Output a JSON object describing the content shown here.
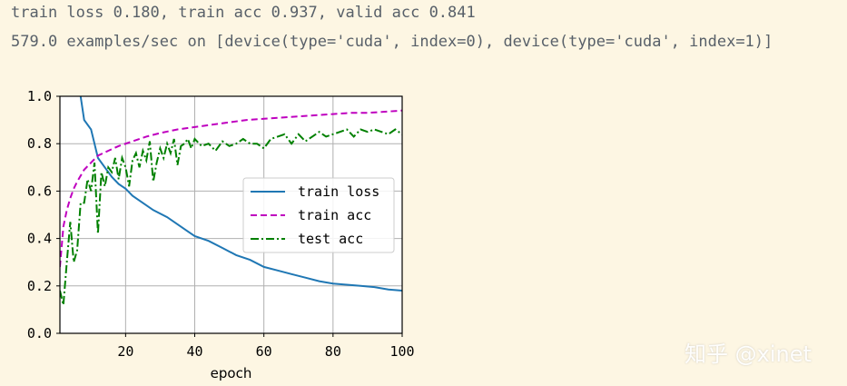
{
  "log": {
    "line1": "train loss 0.180, train acc 0.937, valid acc 0.841",
    "line2": "579.0 examples/sec on [device(type='cuda', index=0), device(type='cuda', index=1)]"
  },
  "watermark": "知乎 @xinet",
  "chart_data": {
    "type": "line",
    "xlabel": "epoch",
    "ylabel": "",
    "xlim": [
      1,
      100
    ],
    "ylim": [
      0.0,
      1.0
    ],
    "xticks": [
      20,
      40,
      60,
      80,
      100
    ],
    "yticks": [
      0.0,
      0.2,
      0.4,
      0.6,
      0.8,
      1.0
    ],
    "xtick_labels": [
      "20",
      "40",
      "60",
      "80",
      "100"
    ],
    "ytick_labels": [
      "0.0",
      "0.2",
      "0.4",
      "0.6",
      "0.8",
      "1.0"
    ],
    "grid": true,
    "legend_position": "center-right",
    "series": [
      {
        "name": "train loss",
        "color": "#1f77b4",
        "style": "solid",
        "points": [
          [
            7,
            1.0
          ],
          [
            8,
            0.9
          ],
          [
            10,
            0.86
          ],
          [
            11,
            0.8
          ],
          [
            12,
            0.74
          ],
          [
            14,
            0.7
          ],
          [
            16,
            0.66
          ],
          [
            18,
            0.63
          ],
          [
            20,
            0.61
          ],
          [
            22,
            0.58
          ],
          [
            25,
            0.55
          ],
          [
            28,
            0.52
          ],
          [
            32,
            0.49
          ],
          [
            36,
            0.45
          ],
          [
            40,
            0.41
          ],
          [
            44,
            0.39
          ],
          [
            48,
            0.36
          ],
          [
            52,
            0.33
          ],
          [
            56,
            0.31
          ],
          [
            60,
            0.28
          ],
          [
            64,
            0.265
          ],
          [
            68,
            0.25
          ],
          [
            72,
            0.235
          ],
          [
            76,
            0.22
          ],
          [
            80,
            0.21
          ],
          [
            84,
            0.205
          ],
          [
            88,
            0.2
          ],
          [
            92,
            0.195
          ],
          [
            96,
            0.185
          ],
          [
            100,
            0.18
          ]
        ]
      },
      {
        "name": "train acc",
        "color": "#bf00bf",
        "style": "dashed",
        "points": [
          [
            1,
            0.28
          ],
          [
            2,
            0.45
          ],
          [
            3,
            0.52
          ],
          [
            4,
            0.57
          ],
          [
            5,
            0.61
          ],
          [
            6,
            0.64
          ],
          [
            8,
            0.69
          ],
          [
            10,
            0.72
          ],
          [
            12,
            0.75
          ],
          [
            15,
            0.77
          ],
          [
            18,
            0.79
          ],
          [
            22,
            0.81
          ],
          [
            26,
            0.83
          ],
          [
            30,
            0.845
          ],
          [
            35,
            0.86
          ],
          [
            40,
            0.87
          ],
          [
            45,
            0.88
          ],
          [
            50,
            0.89
          ],
          [
            55,
            0.9
          ],
          [
            60,
            0.905
          ],
          [
            65,
            0.91
          ],
          [
            70,
            0.915
          ],
          [
            75,
            0.92
          ],
          [
            80,
            0.925
          ],
          [
            85,
            0.93
          ],
          [
            90,
            0.93
          ],
          [
            95,
            0.935
          ],
          [
            100,
            0.94
          ]
        ]
      },
      {
        "name": "test acc",
        "color": "#008000",
        "style": "dashdot",
        "points": [
          [
            1,
            0.18
          ],
          [
            2,
            0.12
          ],
          [
            3,
            0.3
          ],
          [
            4,
            0.47
          ],
          [
            5,
            0.3
          ],
          [
            6,
            0.35
          ],
          [
            7,
            0.55
          ],
          [
            8,
            0.55
          ],
          [
            9,
            0.65
          ],
          [
            10,
            0.6
          ],
          [
            11,
            0.72
          ],
          [
            12,
            0.42
          ],
          [
            13,
            0.68
          ],
          [
            14,
            0.62
          ],
          [
            15,
            0.7
          ],
          [
            16,
            0.68
          ],
          [
            17,
            0.74
          ],
          [
            18,
            0.65
          ],
          [
            19,
            0.74
          ],
          [
            20,
            0.7
          ],
          [
            21,
            0.62
          ],
          [
            22,
            0.73
          ],
          [
            23,
            0.76
          ],
          [
            24,
            0.7
          ],
          [
            25,
            0.77
          ],
          [
            26,
            0.73
          ],
          [
            27,
            0.81
          ],
          [
            28,
            0.64
          ],
          [
            29,
            0.72
          ],
          [
            30,
            0.78
          ],
          [
            31,
            0.74
          ],
          [
            32,
            0.8
          ],
          [
            33,
            0.76
          ],
          [
            34,
            0.82
          ],
          [
            35,
            0.71
          ],
          [
            36,
            0.79
          ],
          [
            37,
            0.8
          ],
          [
            38,
            0.82
          ],
          [
            39,
            0.78
          ],
          [
            40,
            0.82
          ],
          [
            42,
            0.79
          ],
          [
            44,
            0.8
          ],
          [
            46,
            0.77
          ],
          [
            48,
            0.81
          ],
          [
            50,
            0.79
          ],
          [
            52,
            0.8
          ],
          [
            54,
            0.82
          ],
          [
            56,
            0.8
          ],
          [
            58,
            0.8
          ],
          [
            60,
            0.78
          ],
          [
            62,
            0.82
          ],
          [
            64,
            0.83
          ],
          [
            66,
            0.84
          ],
          [
            68,
            0.8
          ],
          [
            70,
            0.84
          ],
          [
            72,
            0.81
          ],
          [
            74,
            0.83
          ],
          [
            76,
            0.85
          ],
          [
            78,
            0.83
          ],
          [
            80,
            0.84
          ],
          [
            82,
            0.85
          ],
          [
            84,
            0.86
          ],
          [
            86,
            0.83
          ],
          [
            88,
            0.86
          ],
          [
            90,
            0.85
          ],
          [
            92,
            0.86
          ],
          [
            94,
            0.85
          ],
          [
            96,
            0.84
          ],
          [
            98,
            0.86
          ],
          [
            100,
            0.84
          ]
        ]
      }
    ]
  }
}
